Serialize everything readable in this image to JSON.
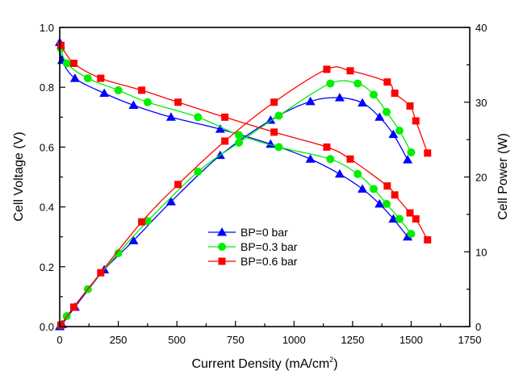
{
  "chart_data": {
    "type": "line",
    "title": "",
    "xlabel": "Current Density (mA/cm",
    "xlabel_sup": "2",
    "xlabel_end": ")",
    "ylabel_left": "Cell Voltage (V)",
    "ylabel_right": "Cell Power (W)",
    "xlim": [
      0,
      1750
    ],
    "ylim_left": [
      0,
      1.0
    ],
    "ylim_right": [
      0,
      40
    ],
    "x_ticks": [
      "0",
      "250",
      "500",
      "750",
      "1000",
      "1250",
      "1500",
      "1750"
    ],
    "y_left_ticks": [
      "0.0",
      "0.2",
      "0.4",
      "0.6",
      "0.8",
      "1.0"
    ],
    "y_right_ticks": [
      "0",
      "10",
      "20",
      "30",
      "40"
    ],
    "grid": false,
    "legend_position": "center",
    "series": [
      {
        "name": "BP=0 bar",
        "color": "#0000ff",
        "marker": "triangle",
        "voltage": {
          "x": [
            0,
            10,
            65,
            190,
            315,
            475,
            685,
            900,
            1070,
            1195,
            1292,
            1365,
            1424,
            1485
          ],
          "y": [
            0.95,
            0.89,
            0.83,
            0.78,
            0.74,
            0.7,
            0.66,
            0.61,
            0.56,
            0.51,
            0.46,
            0.41,
            0.36,
            0.3
          ]
        },
        "power": {
          "x": [
            0,
            10,
            65,
            190,
            315,
            475,
            685,
            900,
            1070,
            1195,
            1292,
            1365,
            1424,
            1485
          ],
          "y": [
            0.0,
            0.3,
            2.6,
            7.6,
            11.5,
            16.7,
            22.9,
            27.6,
            30.1,
            30.6,
            29.9,
            28.0,
            25.7,
            22.3
          ]
        }
      },
      {
        "name": "BP=0.3 bar",
        "color": "#00ee00",
        "marker": "circle",
        "voltage": {
          "x": [
            5,
            30,
            120,
            250,
            375,
            590,
            765,
            935,
            1155,
            1272,
            1340,
            1395,
            1450,
            1500
          ],
          "y": [
            0.93,
            0.88,
            0.83,
            0.79,
            0.75,
            0.7,
            0.64,
            0.6,
            0.56,
            0.51,
            0.46,
            0.41,
            0.36,
            0.31
          ]
        },
        "power": {
          "x": [
            5,
            30,
            120,
            250,
            375,
            590,
            765,
            935,
            1155,
            1272,
            1340,
            1395,
            1450,
            1500
          ],
          "y": [
            0.2,
            1.4,
            5.0,
            9.8,
            14.1,
            20.7,
            24.6,
            28.2,
            32.5,
            32.5,
            31.0,
            28.7,
            26.2,
            23.3
          ]
        }
      },
      {
        "name": "BP=0.6 bar",
        "color": "#ff0000",
        "marker": "square",
        "voltage": {
          "x": [
            5,
            60,
            175,
            350,
            505,
            705,
            915,
            1140,
            1240,
            1398,
            1430,
            1495,
            1520,
            1570
          ],
          "y": [
            0.94,
            0.88,
            0.83,
            0.79,
            0.75,
            0.7,
            0.65,
            0.6,
            0.56,
            0.47,
            0.44,
            0.38,
            0.36,
            0.29
          ]
        },
        "power": {
          "x": [
            5,
            60,
            175,
            350,
            505,
            705,
            915,
            1140,
            1240,
            1398,
            1430,
            1495,
            1520,
            1570
          ],
          "y": [
            0.2,
            2.6,
            7.2,
            14.0,
            19.0,
            24.8,
            30.0,
            34.4,
            34.2,
            32.7,
            31.2,
            29.5,
            27.5,
            23.2
          ]
        }
      }
    ]
  }
}
